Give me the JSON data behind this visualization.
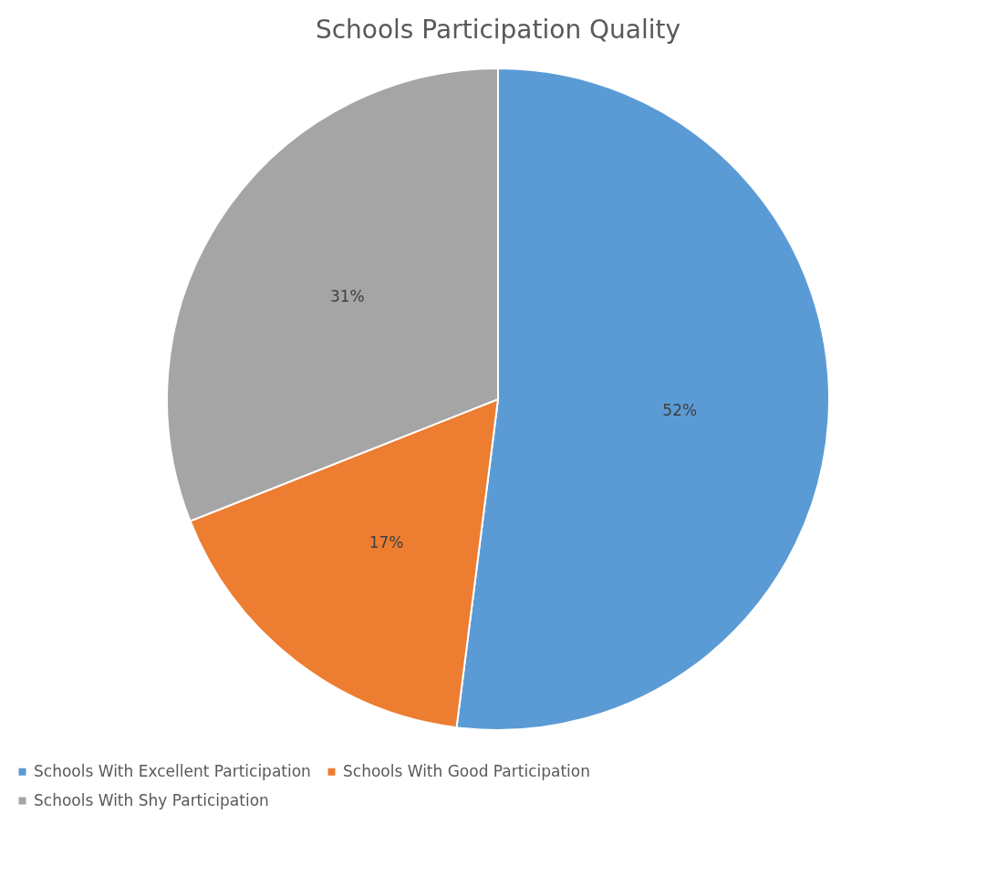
{
  "chart_data": {
    "type": "pie",
    "title": "Schools Participation Quality",
    "categories": [
      "Schools With Excellent Participation",
      "Schools With Good Participation",
      "Schools With Shy Participation"
    ],
    "values": [
      52,
      17,
      31
    ],
    "colors": [
      "#5b9bd5",
      "#ed7d31",
      "#a5a5a5"
    ],
    "value_labels": [
      "52%",
      "17%",
      "31%"
    ],
    "legend": "bottom"
  }
}
